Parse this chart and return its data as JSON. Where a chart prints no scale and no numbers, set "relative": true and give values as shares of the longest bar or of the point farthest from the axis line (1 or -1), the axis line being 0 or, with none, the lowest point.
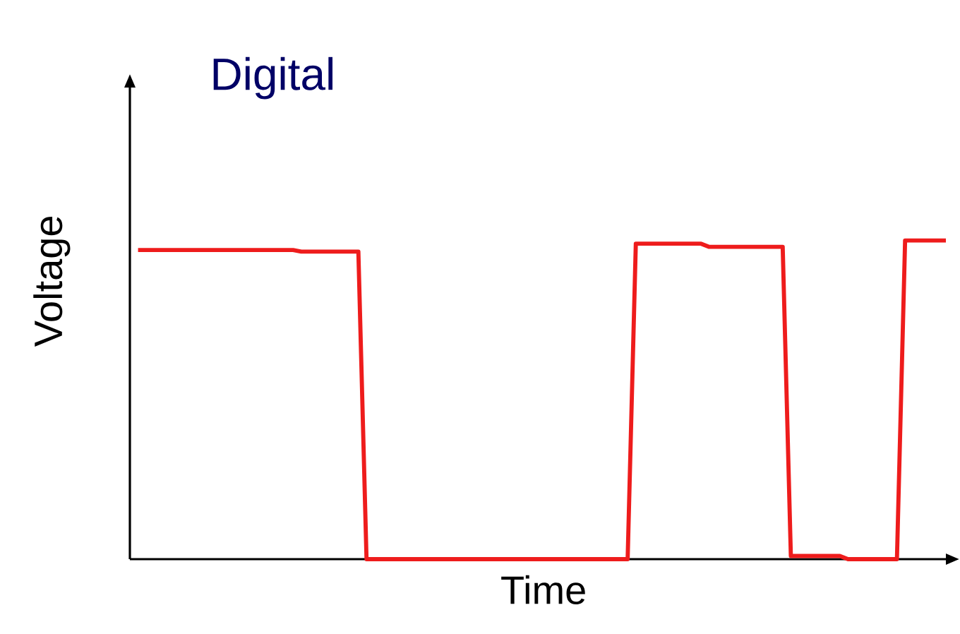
{
  "chart_data": {
    "type": "line",
    "title": "Digital",
    "xlabel": "Time",
    "ylabel": "Voltage",
    "relative": true,
    "categories": [
      null,
      null,
      null,
      null,
      null,
      null,
      null,
      null,
      null,
      null,
      null,
      null,
      null,
      null,
      null,
      null,
      null,
      null,
      null,
      null,
      null,
      null,
      null,
      null,
      null,
      null,
      null,
      null,
      null,
      null,
      null,
      null,
      null,
      null,
      null,
      null,
      null,
      null,
      null,
      null,
      null,
      null,
      null,
      null,
      null,
      null,
      null,
      null,
      null,
      null,
      null,
      null,
      null,
      null,
      null,
      null,
      null,
      null,
      null,
      null,
      null,
      null,
      null,
      null,
      null,
      null,
      null,
      null,
      null,
      null,
      null,
      null,
      null,
      null,
      null,
      null,
      null,
      null,
      null,
      null,
      null,
      null,
      null,
      null,
      null,
      null,
      null,
      null,
      null,
      null,
      null,
      null,
      null,
      null,
      null,
      null,
      null,
      null,
      null,
      null,
      null
    ],
    "series": [
      {
        "color": "#ee1c1c",
        "values": [
          null,
          0.97,
          0.97,
          0.97,
          0.97,
          0.97,
          0.97,
          0.97,
          0.97,
          0.97,
          0.97,
          0.97,
          0.97,
          0.97,
          0.97,
          0.97,
          0.97,
          0.97,
          0.97,
          0.97,
          0.97,
          0.965,
          0.965,
          0.965,
          0.965,
          0.965,
          0.965,
          0.965,
          0.965,
          0,
          0,
          0,
          0,
          0,
          0,
          0,
          0,
          0,
          0,
          0,
          0,
          0,
          0,
          0,
          0,
          0,
          0,
          0,
          0,
          0,
          0,
          0,
          0,
          0,
          0,
          0,
          0,
          0,
          0,
          0,
          0,
          0,
          0.99,
          0.99,
          0.99,
          0.99,
          0.99,
          0.99,
          0.99,
          0.99,
          0.99,
          0.98,
          0.98,
          0.98,
          0.98,
          0.98,
          0.98,
          0.98,
          0.98,
          0.98,
          0.98,
          0.01,
          0.01,
          0.01,
          0.01,
          0.01,
          0.01,
          0.01,
          0,
          0,
          0,
          0,
          0,
          0,
          0,
          1,
          1,
          1,
          1,
          1,
          1
        ]
      }
    ]
  }
}
